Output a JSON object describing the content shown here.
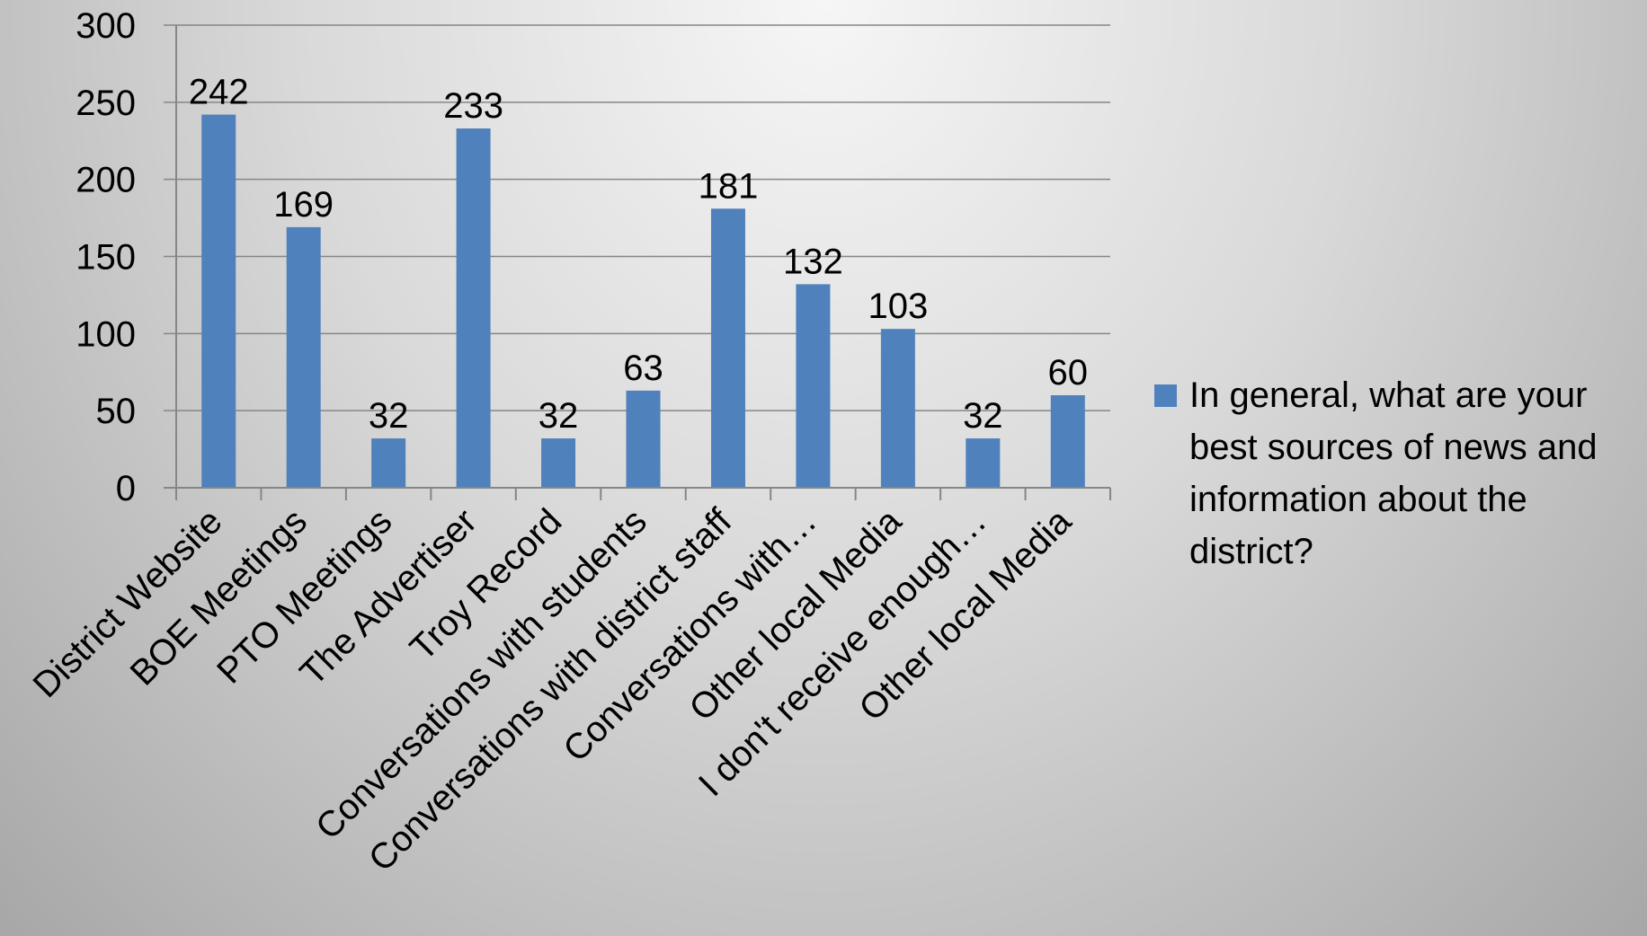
{
  "chart_data": {
    "type": "bar",
    "categories": [
      "District Website",
      "BOE Meetings",
      "PTO Meetings",
      "The Advertiser",
      "Troy Record",
      "Conversations with students",
      "Conversations with district staff",
      "Conversations with…",
      "Other local Media",
      "I don't receive enough…",
      "Other local Media"
    ],
    "series": [
      {
        "name": "In general, what are your best sources of news and information about the district?",
        "values": [
          242,
          169,
          32,
          233,
          32,
          63,
          181,
          132,
          103,
          32,
          60
        ]
      }
    ],
    "ylim": [
      0,
      300
    ],
    "yticks": [
      0,
      50,
      100,
      150,
      200,
      250,
      300
    ],
    "grid": true,
    "legend": "right",
    "bar_color": "#4F81BD",
    "legend_lines": [
      "In general, what are your",
      "best sources of news and",
      "information about the",
      "district?"
    ]
  }
}
